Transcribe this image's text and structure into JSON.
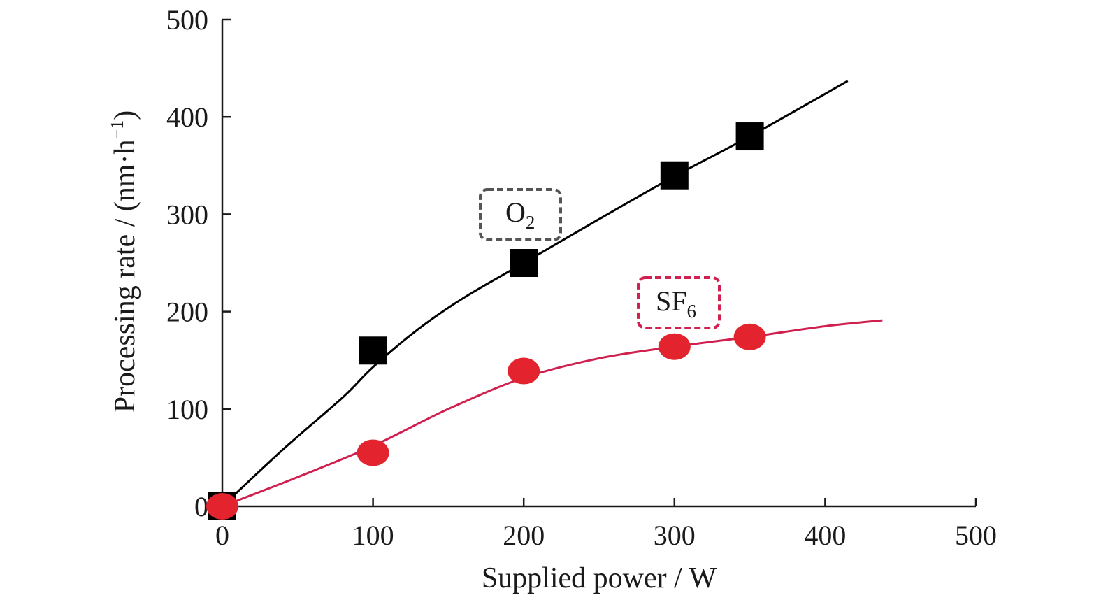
{
  "chart_data": {
    "type": "scatter",
    "xlabel": "Supplied power / W",
    "ylabel_main": "Processing rate / (nm·h",
    "ylabel_sup": "−1",
    "ylabel_close": ")",
    "xlim": [
      0,
      500
    ],
    "ylim": [
      0,
      500
    ],
    "xticks": [
      0,
      100,
      200,
      300,
      400,
      500
    ],
    "yticks": [
      0,
      100,
      200,
      300,
      400,
      500
    ],
    "grid": false,
    "series": [
      {
        "label_main": "O",
        "label_sub": "2",
        "marker": "square",
        "marker_color": "#000000",
        "line_color": "#000000",
        "label_box_color": "#555555",
        "x": [
          0,
          100,
          200,
          300,
          350
        ],
        "y": [
          0,
          160,
          250,
          340,
          380
        ],
        "fit_x": [
          0,
          40,
          80,
          100,
          130,
          160,
          200,
          250,
          300,
          350,
          415
        ],
        "fit_y": [
          0,
          58,
          112,
          143,
          182,
          214,
          250,
          295,
          339,
          380,
          437
        ]
      },
      {
        "label_main": "SF",
        "label_sub": "6",
        "marker": "circle",
        "marker_color": "#e3242e",
        "line_color": "#d02050",
        "label_box_color": "#d02050",
        "x": [
          0,
          100,
          200,
          300,
          350
        ],
        "y": [
          0,
          55,
          139,
          164,
          174
        ],
        "fit_x": [
          0,
          50,
          100,
          150,
          200,
          250,
          300,
          350,
          400,
          438
        ],
        "fit_y": [
          0,
          30,
          62,
          100,
          132,
          152,
          164,
          174,
          185,
          191
        ]
      }
    ]
  }
}
